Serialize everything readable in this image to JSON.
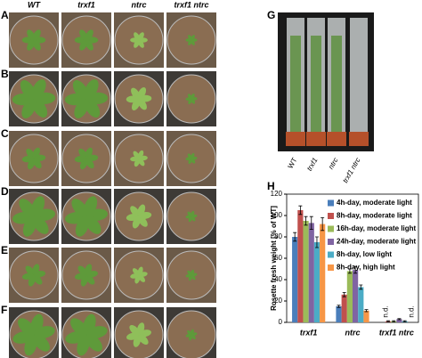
{
  "figure": {
    "panel_labels": [
      "A",
      "B",
      "C",
      "D",
      "E",
      "F",
      "G",
      "H"
    ],
    "columns": [
      "WT",
      "trxf1",
      "ntrc",
      "trxf1 ntrc"
    ],
    "g_labels": [
      "WT",
      "trxf1",
      "ntrc",
      "trxf1 ntrc"
    ]
  },
  "chart_data": {
    "type": "bar",
    "y_label": "Rosette fresh weight [% of WT]",
    "categories": [
      "trxf1",
      "ntrc",
      "trxf1 ntrc"
    ],
    "series": [
      {
        "name": "4h-day, moderate light",
        "color": "#4a7ebb",
        "values": [
          80,
          15,
          null
        ],
        "errors": [
          4,
          1,
          null
        ]
      },
      {
        "name": "8h-day, moderate light",
        "color": "#c0504d",
        "values": [
          105,
          26,
          1
        ],
        "errors": [
          4,
          2,
          0.5
        ]
      },
      {
        "name": "16h-day, moderate light",
        "color": "#9bbb59",
        "values": [
          95,
          48,
          1
        ],
        "errors": [
          4,
          2,
          0.5
        ]
      },
      {
        "name": "24h-day, moderate light",
        "color": "#8064a2",
        "values": [
          93,
          49,
          3
        ],
        "errors": [
          6,
          3,
          0.5
        ]
      },
      {
        "name": "8h-day, low light",
        "color": "#4bacc6",
        "values": [
          75,
          33,
          1
        ],
        "errors": [
          5,
          2,
          0.5
        ]
      },
      {
        "name": "8h-day, high light",
        "color": "#f79646",
        "values": [
          92,
          11,
          null
        ],
        "errors": [
          6,
          1,
          null
        ]
      }
    ],
    "annotations": [
      "n.d.",
      "n.d."
    ],
    "ylim": [
      0,
      120
    ],
    "yticks": [
      0,
      20,
      40,
      60,
      80,
      100,
      120
    ]
  }
}
